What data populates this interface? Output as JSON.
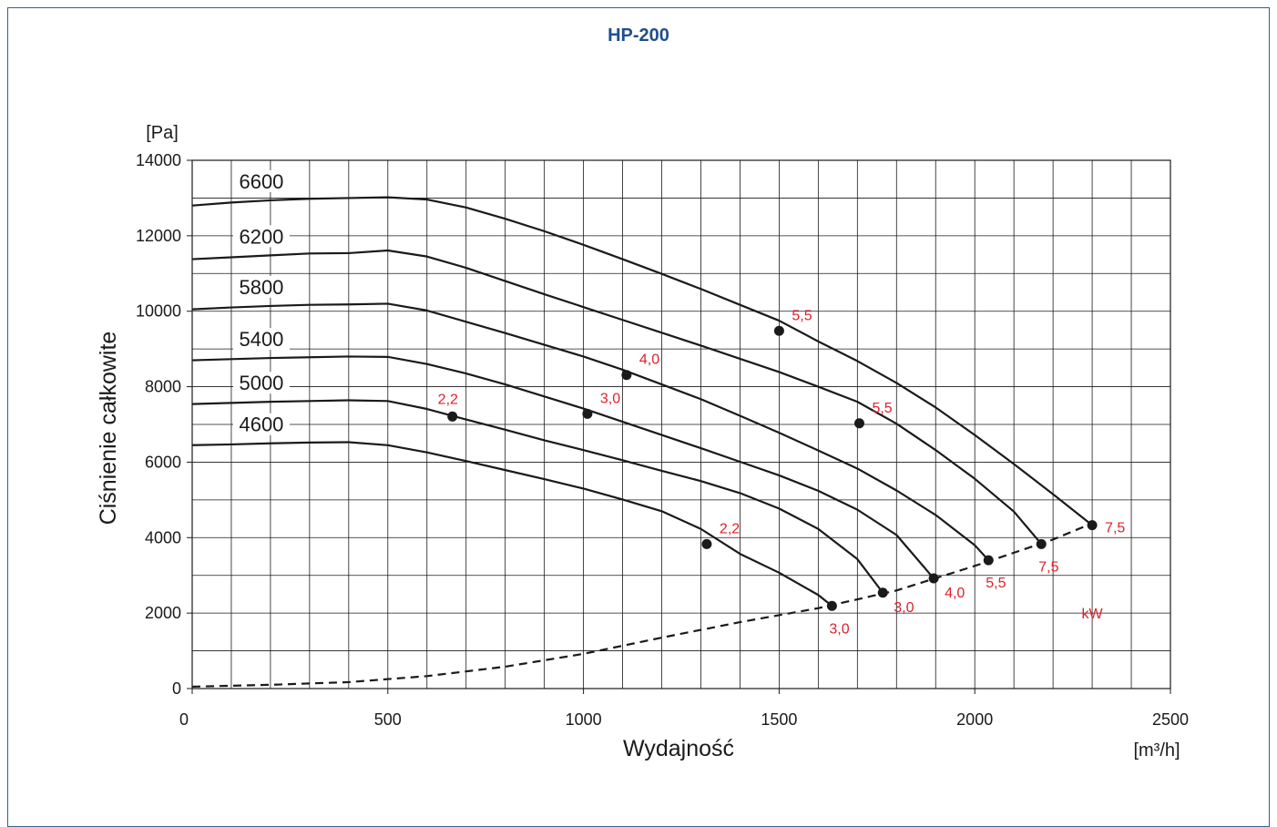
{
  "chart_data": {
    "type": "line",
    "title": "HP-200",
    "xlabel": "Wydajność",
    "xunit": "[m³/h]",
    "ylabel": "Ciśnienie całkowite",
    "yunit": "[Pa]",
    "xlim": [
      0,
      2500
    ],
    "ylim": [
      0,
      14000
    ],
    "xticks": [
      0,
      500,
      1000,
      1500,
      2000,
      2500
    ],
    "yticks": [
      0,
      2000,
      4000,
      6000,
      8000,
      10000,
      12000,
      14000
    ],
    "grid": true,
    "line_color": "#1a1a1a",
    "annotation_color": "#e0202a",
    "power_unit_label": "kW",
    "series": [
      {
        "name": "6600",
        "x": [
          0,
          100,
          200,
          300,
          400,
          500,
          600,
          700,
          800,
          900,
          1000,
          1100,
          1200,
          1300,
          1400,
          1500,
          1600,
          1700,
          1800,
          1900,
          2000,
          2100,
          2200,
          2300
        ],
        "y": [
          12800,
          12880,
          12940,
          12980,
          13000,
          13020,
          12960,
          12750,
          12450,
          12120,
          11760,
          11380,
          10990,
          10590,
          10170,
          9750,
          9200,
          8680,
          8100,
          7450,
          6720,
          5950,
          5150,
          4330
        ]
      },
      {
        "name": "6200",
        "x": [
          0,
          100,
          200,
          300,
          400,
          500,
          600,
          700,
          800,
          900,
          1000,
          1100,
          1200,
          1300,
          1400,
          1500,
          1600,
          1700,
          1800,
          1900,
          2000,
          2100,
          2170
        ],
        "y": [
          11380,
          11430,
          11480,
          11530,
          11540,
          11610,
          11450,
          11150,
          10800,
          10450,
          10110,
          9770,
          9430,
          9090,
          8740,
          8390,
          8000,
          7600,
          7020,
          6320,
          5560,
          4690,
          3830
        ]
      },
      {
        "name": "5800",
        "x": [
          0,
          100,
          200,
          300,
          400,
          500,
          600,
          700,
          800,
          900,
          1000,
          1100,
          1200,
          1300,
          1400,
          1500,
          1600,
          1700,
          1800,
          1900,
          2000,
          2035
        ],
        "y": [
          10050,
          10100,
          10140,
          10170,
          10180,
          10200,
          10020,
          9720,
          9420,
          9110,
          8800,
          8450,
          8060,
          7670,
          7230,
          6780,
          6310,
          5830,
          5250,
          4600,
          3800,
          3400
        ]
      },
      {
        "name": "5400",
        "x": [
          0,
          100,
          200,
          300,
          400,
          500,
          600,
          700,
          800,
          900,
          1000,
          1100,
          1200,
          1300,
          1400,
          1500,
          1600,
          1700,
          1800,
          1895
        ],
        "y": [
          8700,
          8730,
          8760,
          8780,
          8800,
          8790,
          8600,
          8350,
          8060,
          7740,
          7420,
          7070,
          6720,
          6370,
          6010,
          5650,
          5240,
          4740,
          4070,
          2920
        ]
      },
      {
        "name": "5000",
        "x": [
          0,
          100,
          200,
          300,
          400,
          500,
          600,
          700,
          800,
          900,
          1000,
          1100,
          1200,
          1300,
          1400,
          1500,
          1600,
          1700,
          1765
        ],
        "y": [
          7540,
          7570,
          7600,
          7620,
          7640,
          7620,
          7410,
          7130,
          6860,
          6580,
          6320,
          6050,
          5770,
          5500,
          5180,
          4770,
          4230,
          3430,
          2540
        ]
      },
      {
        "name": "4600",
        "x": [
          0,
          100,
          200,
          300,
          400,
          500,
          600,
          700,
          800,
          900,
          1000,
          1100,
          1200,
          1300,
          1400,
          1500,
          1600,
          1635
        ],
        "y": [
          6450,
          6470,
          6500,
          6520,
          6530,
          6450,
          6260,
          6030,
          5790,
          5550,
          5300,
          5010,
          4700,
          4230,
          3570,
          3070,
          2480,
          2190
        ]
      }
    ],
    "system_curve": {
      "x": [
        0,
        200,
        400,
        600,
        800,
        1000,
        1200,
        1400,
        1600,
        1800,
        2000,
        2200,
        2300
      ],
      "y": [
        50,
        100,
        170,
        330,
        580,
        920,
        1350,
        1760,
        2130,
        2600,
        3250,
        3950,
        4380
      ]
    },
    "power_points": [
      {
        "x": 1500,
        "y": 9480,
        "label": "5,5",
        "pos": "ne"
      },
      {
        "x": 1705,
        "y": 7030,
        "label": "5,5",
        "pos": "ne"
      },
      {
        "x": 1110,
        "y": 8310,
        "label": "4,0",
        "pos": "ne"
      },
      {
        "x": 1010,
        "y": 7280,
        "label": "3,0",
        "pos": "ne"
      },
      {
        "x": 665,
        "y": 7210,
        "label": "2,2",
        "pos": "nw"
      },
      {
        "x": 1315,
        "y": 3830,
        "label": "2,2",
        "pos": "ne"
      },
      {
        "x": 2300,
        "y": 4330,
        "label": "7,5",
        "pos": "e"
      },
      {
        "x": 2170,
        "y": 3830,
        "label": "7,5",
        "pos": "s"
      },
      {
        "x": 2035,
        "y": 3400,
        "label": "5,5",
        "pos": "s"
      },
      {
        "x": 1895,
        "y": 2920,
        "label": "4,0",
        "pos": "se"
      },
      {
        "x": 1765,
        "y": 2540,
        "label": "3,0",
        "pos": "se"
      },
      {
        "x": 1635,
        "y": 2190,
        "label": "3,0",
        "pos": "s"
      }
    ]
  }
}
